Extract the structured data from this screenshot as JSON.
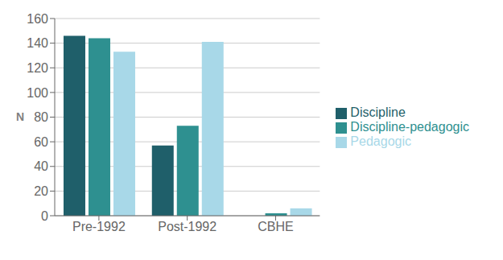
{
  "chart_data": {
    "type": "bar",
    "ylabel": "N",
    "categories": [
      "Pre-1992",
      "Post-1992",
      "CBHE"
    ],
    "series": [
      {
        "name": "Discipline",
        "values": [
          146,
          57,
          0
        ],
        "color": "#1F5F6A"
      },
      {
        "name": "Discipline-pedagogic",
        "values": [
          144,
          73,
          2
        ],
        "color": "#2E9090"
      },
      {
        "name": "Pedagogic",
        "values": [
          133,
          141,
          6
        ],
        "color": "#A8D8E8"
      }
    ],
    "ylim": [
      0,
      160
    ],
    "yticks": [
      0,
      20,
      40,
      60,
      80,
      100,
      120,
      140,
      160
    ],
    "grid": true,
    "legend": "right"
  }
}
